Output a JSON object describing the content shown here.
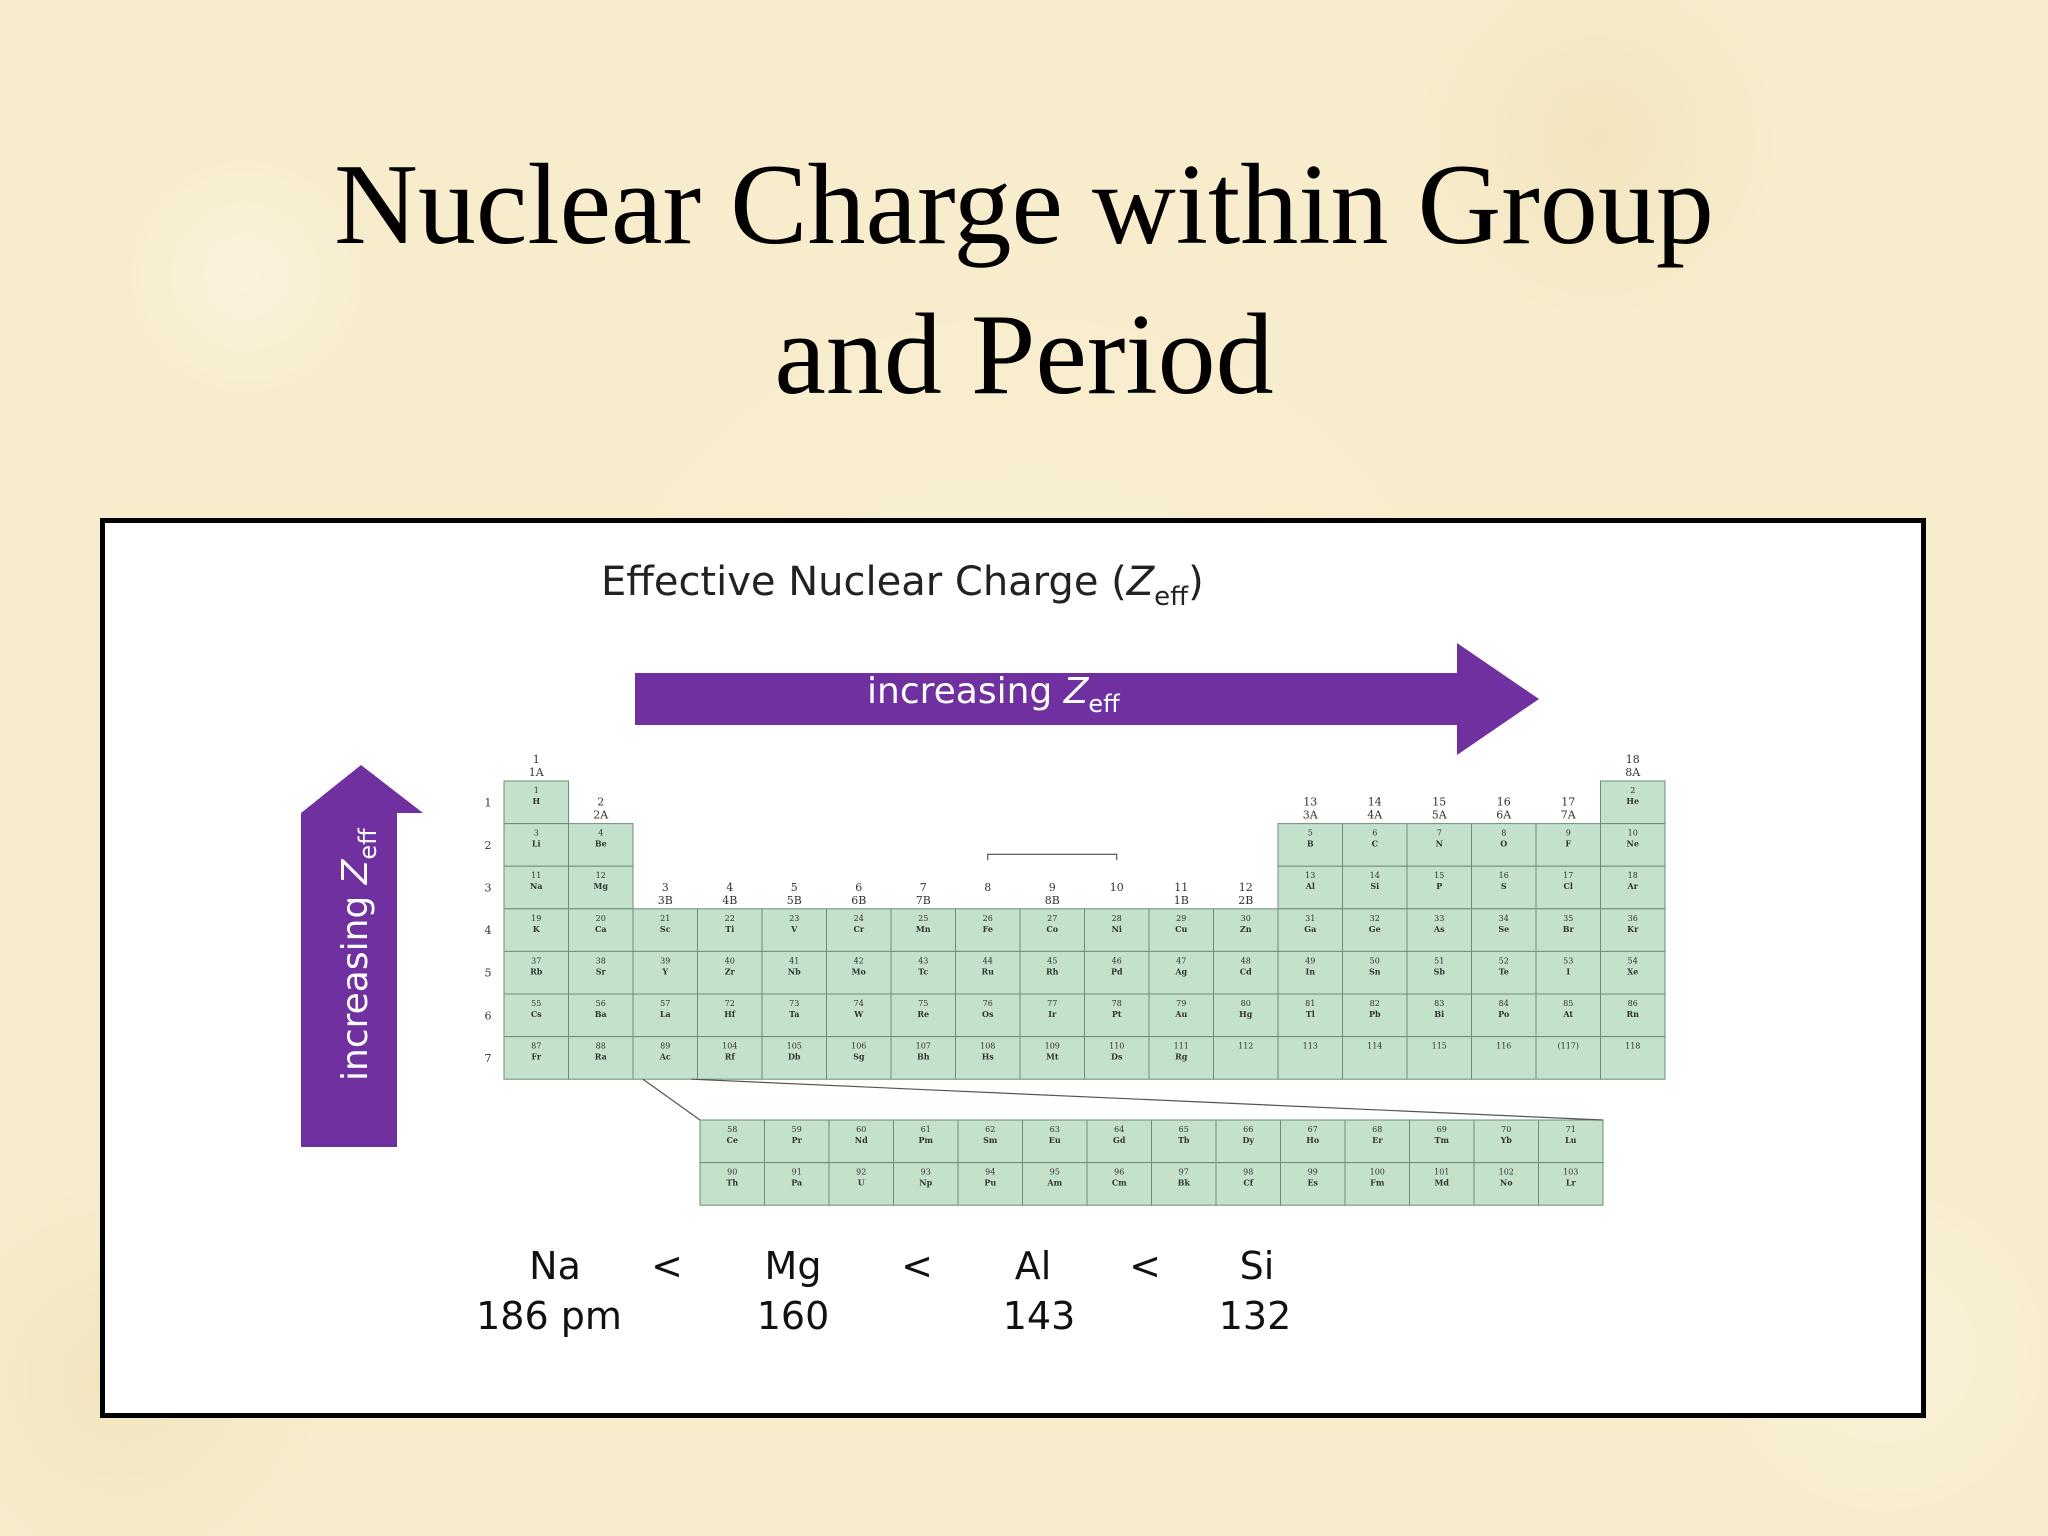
{
  "slide": {
    "title_line1": "Nuclear Charge within Group",
    "title_line2": "and Period"
  },
  "figure": {
    "title_main": "Effective Nuclear Charge (",
    "title_z": "Z",
    "title_sub": "eff",
    "title_close": ")",
    "horizontal_arrow": {
      "text": "increasing ",
      "z": "Z",
      "sub": "eff"
    },
    "vertical_arrow": {
      "text": "increasing ",
      "z": "Z",
      "sub": "eff"
    },
    "colors": {
      "arrow": "#7030a0",
      "cell": "#c4e1cb",
      "cell_border": "#6b8f75"
    },
    "periods": [
      "1",
      "2",
      "3",
      "4",
      "5",
      "6",
      "7"
    ],
    "group_headers": [
      {
        "col": 0,
        "num": "1",
        "label": "1A"
      },
      {
        "col": 1,
        "num": "2",
        "label": "2A"
      },
      {
        "col": 2,
        "num": "3",
        "label": "3B"
      },
      {
        "col": 3,
        "num": "4",
        "label": "4B"
      },
      {
        "col": 4,
        "num": "5",
        "label": "5B"
      },
      {
        "col": 5,
        "num": "6",
        "label": "6B"
      },
      {
        "col": 6,
        "num": "7",
        "label": "7B"
      },
      {
        "col": 7,
        "num": "8",
        "label": ""
      },
      {
        "col": 8,
        "num": "9",
        "label": "8B"
      },
      {
        "col": 9,
        "num": "10",
        "label": ""
      },
      {
        "col": 10,
        "num": "11",
        "label": "1B"
      },
      {
        "col": 11,
        "num": "12",
        "label": "2B"
      },
      {
        "col": 12,
        "num": "13",
        "label": "3A"
      },
      {
        "col": 13,
        "num": "14",
        "label": "4A"
      },
      {
        "col": 14,
        "num": "15",
        "label": "5A"
      },
      {
        "col": 15,
        "num": "16",
        "label": "6A"
      },
      {
        "col": 16,
        "num": "17",
        "label": "7A"
      },
      {
        "col": 17,
        "num": "18",
        "label": "8A"
      }
    ],
    "table_rows": [
      [
        [
          "1",
          "H"
        ],
        null,
        null,
        null,
        null,
        null,
        null,
        null,
        null,
        null,
        null,
        null,
        null,
        null,
        null,
        null,
        null,
        [
          "2",
          "He"
        ]
      ],
      [
        [
          "3",
          "Li"
        ],
        [
          "4",
          "Be"
        ],
        null,
        null,
        null,
        null,
        null,
        null,
        null,
        null,
        null,
        null,
        [
          "5",
          "B"
        ],
        [
          "6",
          "C"
        ],
        [
          "7",
          "N"
        ],
        [
          "8",
          "O"
        ],
        [
          "9",
          "F"
        ],
        [
          "10",
          "Ne"
        ]
      ],
      [
        [
          "11",
          "Na"
        ],
        [
          "12",
          "Mg"
        ],
        null,
        null,
        null,
        null,
        null,
        null,
        null,
        null,
        null,
        null,
        [
          "13",
          "Al"
        ],
        [
          "14",
          "Si"
        ],
        [
          "15",
          "P"
        ],
        [
          "16",
          "S"
        ],
        [
          "17",
          "Cl"
        ],
        [
          "18",
          "Ar"
        ]
      ],
      [
        [
          "19",
          "K"
        ],
        [
          "20",
          "Ca"
        ],
        [
          "21",
          "Sc"
        ],
        [
          "22",
          "Ti"
        ],
        [
          "23",
          "V"
        ],
        [
          "24",
          "Cr"
        ],
        [
          "25",
          "Mn"
        ],
        [
          "26",
          "Fe"
        ],
        [
          "27",
          "Co"
        ],
        [
          "28",
          "Ni"
        ],
        [
          "29",
          "Cu"
        ],
        [
          "30",
          "Zn"
        ],
        [
          "31",
          "Ga"
        ],
        [
          "32",
          "Ge"
        ],
        [
          "33",
          "As"
        ],
        [
          "34",
          "Se"
        ],
        [
          "35",
          "Br"
        ],
        [
          "36",
          "Kr"
        ]
      ],
      [
        [
          "37",
          "Rb"
        ],
        [
          "38",
          "Sr"
        ],
        [
          "39",
          "Y"
        ],
        [
          "40",
          "Zr"
        ],
        [
          "41",
          "Nb"
        ],
        [
          "42",
          "Mo"
        ],
        [
          "43",
          "Tc"
        ],
        [
          "44",
          "Ru"
        ],
        [
          "45",
          "Rh"
        ],
        [
          "46",
          "Pd"
        ],
        [
          "47",
          "Ag"
        ],
        [
          "48",
          "Cd"
        ],
        [
          "49",
          "In"
        ],
        [
          "50",
          "Sn"
        ],
        [
          "51",
          "Sb"
        ],
        [
          "52",
          "Te"
        ],
        [
          "53",
          "I"
        ],
        [
          "54",
          "Xe"
        ]
      ],
      [
        [
          "55",
          "Cs"
        ],
        [
          "56",
          "Ba"
        ],
        [
          "57",
          "La"
        ],
        [
          "72",
          "Hf"
        ],
        [
          "73",
          "Ta"
        ],
        [
          "74",
          "W"
        ],
        [
          "75",
          "Re"
        ],
        [
          "76",
          "Os"
        ],
        [
          "77",
          "Ir"
        ],
        [
          "78",
          "Pt"
        ],
        [
          "79",
          "Au"
        ],
        [
          "80",
          "Hg"
        ],
        [
          "81",
          "Tl"
        ],
        [
          "82",
          "Pb"
        ],
        [
          "83",
          "Bi"
        ],
        [
          "84",
          "Po"
        ],
        [
          "85",
          "At"
        ],
        [
          "86",
          "Rn"
        ]
      ],
      [
        [
          "87",
          "Fr"
        ],
        [
          "88",
          "Ra"
        ],
        [
          "89",
          "Ac"
        ],
        [
          "104",
          "Rf"
        ],
        [
          "105",
          "Db"
        ],
        [
          "106",
          "Sg"
        ],
        [
          "107",
          "Bh"
        ],
        [
          "108",
          "Hs"
        ],
        [
          "109",
          "Mt"
        ],
        [
          "110",
          "Ds"
        ],
        [
          "111",
          "Rg"
        ],
        [
          "112",
          ""
        ],
        [
          "113",
          ""
        ],
        [
          "114",
          ""
        ],
        [
          "115",
          ""
        ],
        [
          "116",
          ""
        ],
        [
          "(117)",
          ""
        ],
        [
          "118",
          ""
        ]
      ]
    ],
    "f_block_rows": [
      [
        [
          "58",
          "Ce"
        ],
        [
          "59",
          "Pr"
        ],
        [
          "60",
          "Nd"
        ],
        [
          "61",
          "Pm"
        ],
        [
          "62",
          "Sm"
        ],
        [
          "63",
          "Eu"
        ],
        [
          "64",
          "Gd"
        ],
        [
          "65",
          "Tb"
        ],
        [
          "66",
          "Dy"
        ],
        [
          "67",
          "Ho"
        ],
        [
          "68",
          "Er"
        ],
        [
          "69",
          "Tm"
        ],
        [
          "70",
          "Yb"
        ],
        [
          "71",
          "Lu"
        ]
      ],
      [
        [
          "90",
          "Th"
        ],
        [
          "91",
          "Pa"
        ],
        [
          "92",
          "U"
        ],
        [
          "93",
          "Np"
        ],
        [
          "94",
          "Pu"
        ],
        [
          "95",
          "Am"
        ],
        [
          "96",
          "Cm"
        ],
        [
          "97",
          "Bk"
        ],
        [
          "98",
          "Cf"
        ],
        [
          "99",
          "Es"
        ],
        [
          "100",
          "Fm"
        ],
        [
          "101",
          "Md"
        ],
        [
          "102",
          "No"
        ],
        [
          "103",
          "Lr"
        ]
      ]
    ],
    "comparison": {
      "elements": [
        "Na",
        "Mg",
        "Al",
        "Si"
      ],
      "values": [
        "186 pm",
        "160",
        "143",
        "132"
      ],
      "separator": "<"
    }
  }
}
